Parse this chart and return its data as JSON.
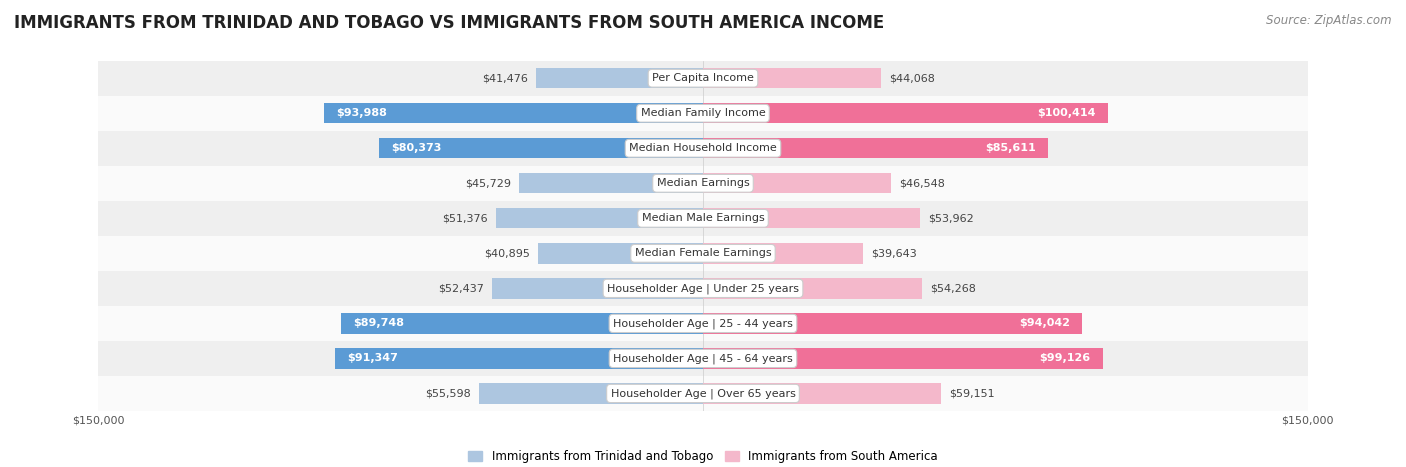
{
  "title": "IMMIGRANTS FROM TRINIDAD AND TOBAGO VS IMMIGRANTS FROM SOUTH AMERICA INCOME",
  "source": "Source: ZipAtlas.com",
  "categories": [
    "Per Capita Income",
    "Median Family Income",
    "Median Household Income",
    "Median Earnings",
    "Median Male Earnings",
    "Median Female Earnings",
    "Householder Age | Under 25 years",
    "Householder Age | 25 - 44 years",
    "Householder Age | 45 - 64 years",
    "Householder Age | Over 65 years"
  ],
  "left_values": [
    41476,
    93988,
    80373,
    45729,
    51376,
    40895,
    52437,
    89748,
    91347,
    55598
  ],
  "right_values": [
    44068,
    100414,
    85611,
    46548,
    53962,
    39643,
    54268,
    94042,
    99126,
    59151
  ],
  "left_labels": [
    "$41,476",
    "$93,988",
    "$80,373",
    "$45,729",
    "$51,376",
    "$40,895",
    "$52,437",
    "$89,748",
    "$91,347",
    "$55,598"
  ],
  "right_labels": [
    "$44,068",
    "$100,414",
    "$85,611",
    "$46,548",
    "$53,962",
    "$39,643",
    "$54,268",
    "$94,042",
    "$99,126",
    "$59,151"
  ],
  "left_color_light": "#adc6e0",
  "left_color_dark": "#5b9bd5",
  "right_color_light": "#f4b8cb",
  "right_color_dark": "#f07098",
  "label_left": "Immigrants from Trinidad and Tobago",
  "label_right": "Immigrants from South America",
  "axis_max": 150000,
  "bar_height": 0.58,
  "row_bg_even": "#efefef",
  "row_bg_odd": "#fafafa",
  "title_fontsize": 12,
  "source_fontsize": 8.5,
  "cat_fontsize": 8,
  "value_fontsize": 8,
  "axis_label_fontsize": 8,
  "legend_fontsize": 8.5,
  "threshold_dark": 65000
}
